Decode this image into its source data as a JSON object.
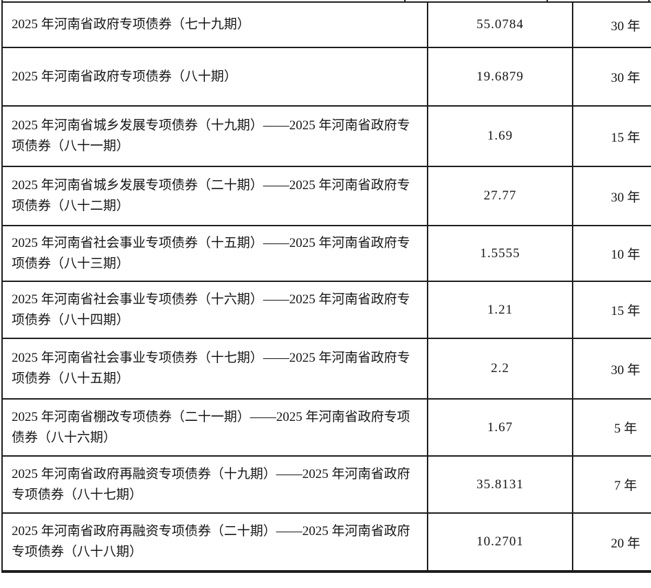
{
  "page": {
    "background_color": "#ffffff",
    "text_color": "#151515",
    "border_color": "#1d1d1d"
  },
  "table": {
    "description": "Scanned table of 2025 Henan Province government special bond issues: name, amount, term. Header row not visible (cut off above).",
    "rows": [
      {
        "name": "2025 年河南省政府专项债券（七十九期）",
        "amount": "55.0784",
        "term": "30 年"
      },
      {
        "name": "2025 年河南省政府专项债券（八十期）",
        "amount": "19.6879",
        "term": "30 年"
      },
      {
        "name": "2025 年河南省城乡发展专项债券（十九期）——2025 年河南省政府专项债券（八十一期）",
        "amount": "1.69",
        "term": "15 年"
      },
      {
        "name": "2025 年河南省城乡发展专项债券（二十期）——2025 年河南省政府专项债券（八十二期）",
        "amount": "27.77",
        "term": "30 年"
      },
      {
        "name": "2025 年河南省社会事业专项债券（十五期）——2025 年河南省政府专项债券（八十三期）",
        "amount": "1.5555",
        "term": "10 年"
      },
      {
        "name": "2025 年河南省社会事业专项债券（十六期）——2025 年河南省政府专项债券（八十四期）",
        "amount": "1.21",
        "term": "15 年"
      },
      {
        "name": "2025 年河南省社会事业专项债券（十七期）——2025 年河南省政府专项债券（八十五期）",
        "amount": "2.2",
        "term": "30 年"
      },
      {
        "name": "2025 年河南省棚改专项债券（二十一期）——2025 年河南省政府专项债券（八十六期）",
        "amount": "1.67",
        "term": "5 年"
      },
      {
        "name": "2025 年河南省政府再融资专项债券（十九期）——2025 年河南省政府专项债券（八十七期）",
        "amount": "35.8131",
        "term": "7 年"
      },
      {
        "name": "2025 年河南省政府再融资专项债券（二十期）——2025 年河南省政府专项债券（八十八期）",
        "amount": "10.2701",
        "term": "20 年"
      }
    ]
  }
}
